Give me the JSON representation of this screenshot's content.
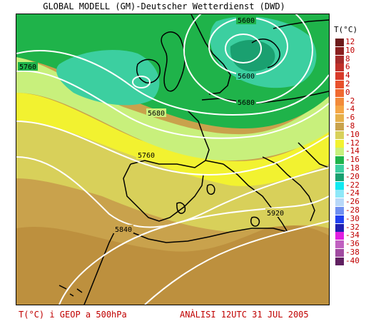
{
  "header": {
    "title": "GLOBAL MODELL (GM)-Deutscher Wetterdienst (DWD)"
  },
  "map": {
    "contour_labels": [
      "5600",
      "5600",
      "5680",
      "5680",
      "5760",
      "5760",
      "5840",
      "5920"
    ]
  },
  "legend": {
    "title": "T(°C)",
    "items": [
      {
        "value": "12",
        "color": "#6b1a1a"
      },
      {
        "value": "10",
        "color": "#8a1f1f"
      },
      {
        "value": "8",
        "color": "#a52a2a"
      },
      {
        "value": "6",
        "color": "#c0302a"
      },
      {
        "value": "4",
        "color": "#d83a2a"
      },
      {
        "value": "2",
        "color": "#e8502c"
      },
      {
        "value": "0",
        "color": "#f06a30"
      },
      {
        "value": "-2",
        "color": "#f28a3a"
      },
      {
        "value": "-4",
        "color": "#f5a646"
      },
      {
        "value": "-6",
        "color": "#e6b04a"
      },
      {
        "value": "-8",
        "color": "#c9a24c"
      },
      {
        "value": "-10",
        "color": "#d8d05a"
      },
      {
        "value": "-12",
        "color": "#f2f230"
      },
      {
        "value": "-14",
        "color": "#c8f07c"
      },
      {
        "value": "-16",
        "color": "#1fb34a"
      },
      {
        "value": "-18",
        "color": "#3ccfa0"
      },
      {
        "value": "-20",
        "color": "#1aa070"
      },
      {
        "value": "-22",
        "color": "#10e8f0"
      },
      {
        "value": "-24",
        "color": "#8ee8f8"
      },
      {
        "value": "-26",
        "color": "#b8d8f8"
      },
      {
        "value": "-28",
        "color": "#7090f0"
      },
      {
        "value": "-30",
        "color": "#2040f0"
      },
      {
        "value": "-32",
        "color": "#2020b0"
      },
      {
        "value": "-34",
        "color": "#e020e0"
      },
      {
        "value": "-36",
        "color": "#c060c0"
      },
      {
        "value": "-38",
        "color": "#a04aa0"
      },
      {
        "value": "-40",
        "color": "#602060"
      }
    ]
  },
  "footer": {
    "left": "T(°C) i GEOP a 500hPa",
    "right": "ANÀLISI 12UTC 31 JUL 2005"
  }
}
